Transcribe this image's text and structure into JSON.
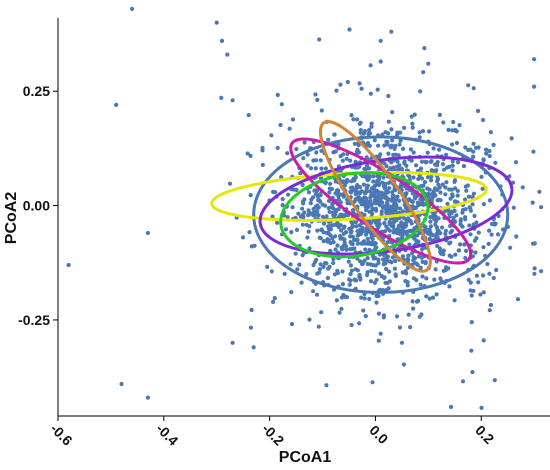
{
  "chart_data": {
    "type": "scatter",
    "title": "",
    "xlabel": "PCoA1",
    "ylabel": "PCoA2",
    "xlim": [
      -0.6,
      0.33
    ],
    "ylim": [
      -0.46,
      0.41
    ],
    "grid": false,
    "legend": "none",
    "x_ticks": [
      -0.6,
      -0.4,
      -0.2,
      0.0,
      0.2
    ],
    "x_tick_labels": [
      "-0.6",
      "-0.4",
      "-0.2",
      "0.0",
      "0.2"
    ],
    "y_ticks": [
      0.25,
      0.0,
      -0.25
    ],
    "y_tick_labels": [
      "0.25",
      "0.00",
      "-0.25"
    ],
    "colors": {
      "points": "#4a78b4",
      "blue_ellipse": "#4a78b4",
      "yellow_ellipse": "#e6e60a",
      "purple_ellipse": "#7d2ad6",
      "magenta_ellipse": "#c81eae",
      "green_ellipse": "#28c828",
      "orange_ellipse": "#d0853a"
    },
    "points_sampled": [
      {
        "x": -0.46,
        "y": 0.43
      },
      {
        "x": -0.49,
        "y": 0.22
      },
      {
        "x": -0.58,
        "y": -0.13
      },
      {
        "x": -0.43,
        "y": -0.06
      },
      {
        "x": -0.48,
        "y": -0.39
      },
      {
        "x": -0.43,
        "y": -0.42
      },
      {
        "x": -0.3,
        "y": 0.4
      },
      {
        "x": -0.29,
        "y": 0.36
      },
      {
        "x": -0.28,
        "y": 0.33
      },
      {
        "x": -0.27,
        "y": 0.23
      },
      {
        "x": -0.27,
        "y": -0.3
      },
      {
        "x": -0.23,
        "y": -0.31
      },
      {
        "x": 0.3,
        "y": 0.32
      },
      {
        "x": 0.3,
        "y": 0.26
      },
      {
        "x": 0.31,
        "y": 0.03
      },
      {
        "x": 0.26,
        "y": 0.05
      },
      {
        "x": 0.03,
        "y": 0.38
      },
      {
        "x": 0.01,
        "y": 0.36
      },
      {
        "x": 0.1,
        "y": 0.31
      },
      {
        "x": 0.05,
        "y": -0.3
      },
      {
        "x": 0.01,
        "y": -0.28
      }
    ],
    "ellipses": [
      {
        "name": "",
        "color": "blue",
        "cx": 0.01,
        "cy": -0.02,
        "rx": 0.24,
        "ry": 0.17,
        "angle_deg": 0
      },
      {
        "name": "",
        "color": "yellow",
        "cx": -0.05,
        "cy": 0.02,
        "rx": 0.26,
        "ry": 0.05,
        "angle_deg": 3
      },
      {
        "name": "",
        "color": "purple",
        "cx": 0.02,
        "cy": -0.0,
        "rx": 0.24,
        "ry": 0.1,
        "angle_deg": 8
      },
      {
        "name": "",
        "color": "magenta",
        "cx": 0.01,
        "cy": 0.01,
        "rx": 0.2,
        "ry": 0.06,
        "angle_deg": -33
      },
      {
        "name": "",
        "color": "green",
        "cx": -0.04,
        "cy": -0.02,
        "rx": 0.14,
        "ry": 0.09,
        "angle_deg": 8
      },
      {
        "name": "",
        "color": "orange",
        "cx": 0.0,
        "cy": 0.02,
        "rx": 0.17,
        "ry": 0.05,
        "angle_deg": -55
      }
    ]
  }
}
